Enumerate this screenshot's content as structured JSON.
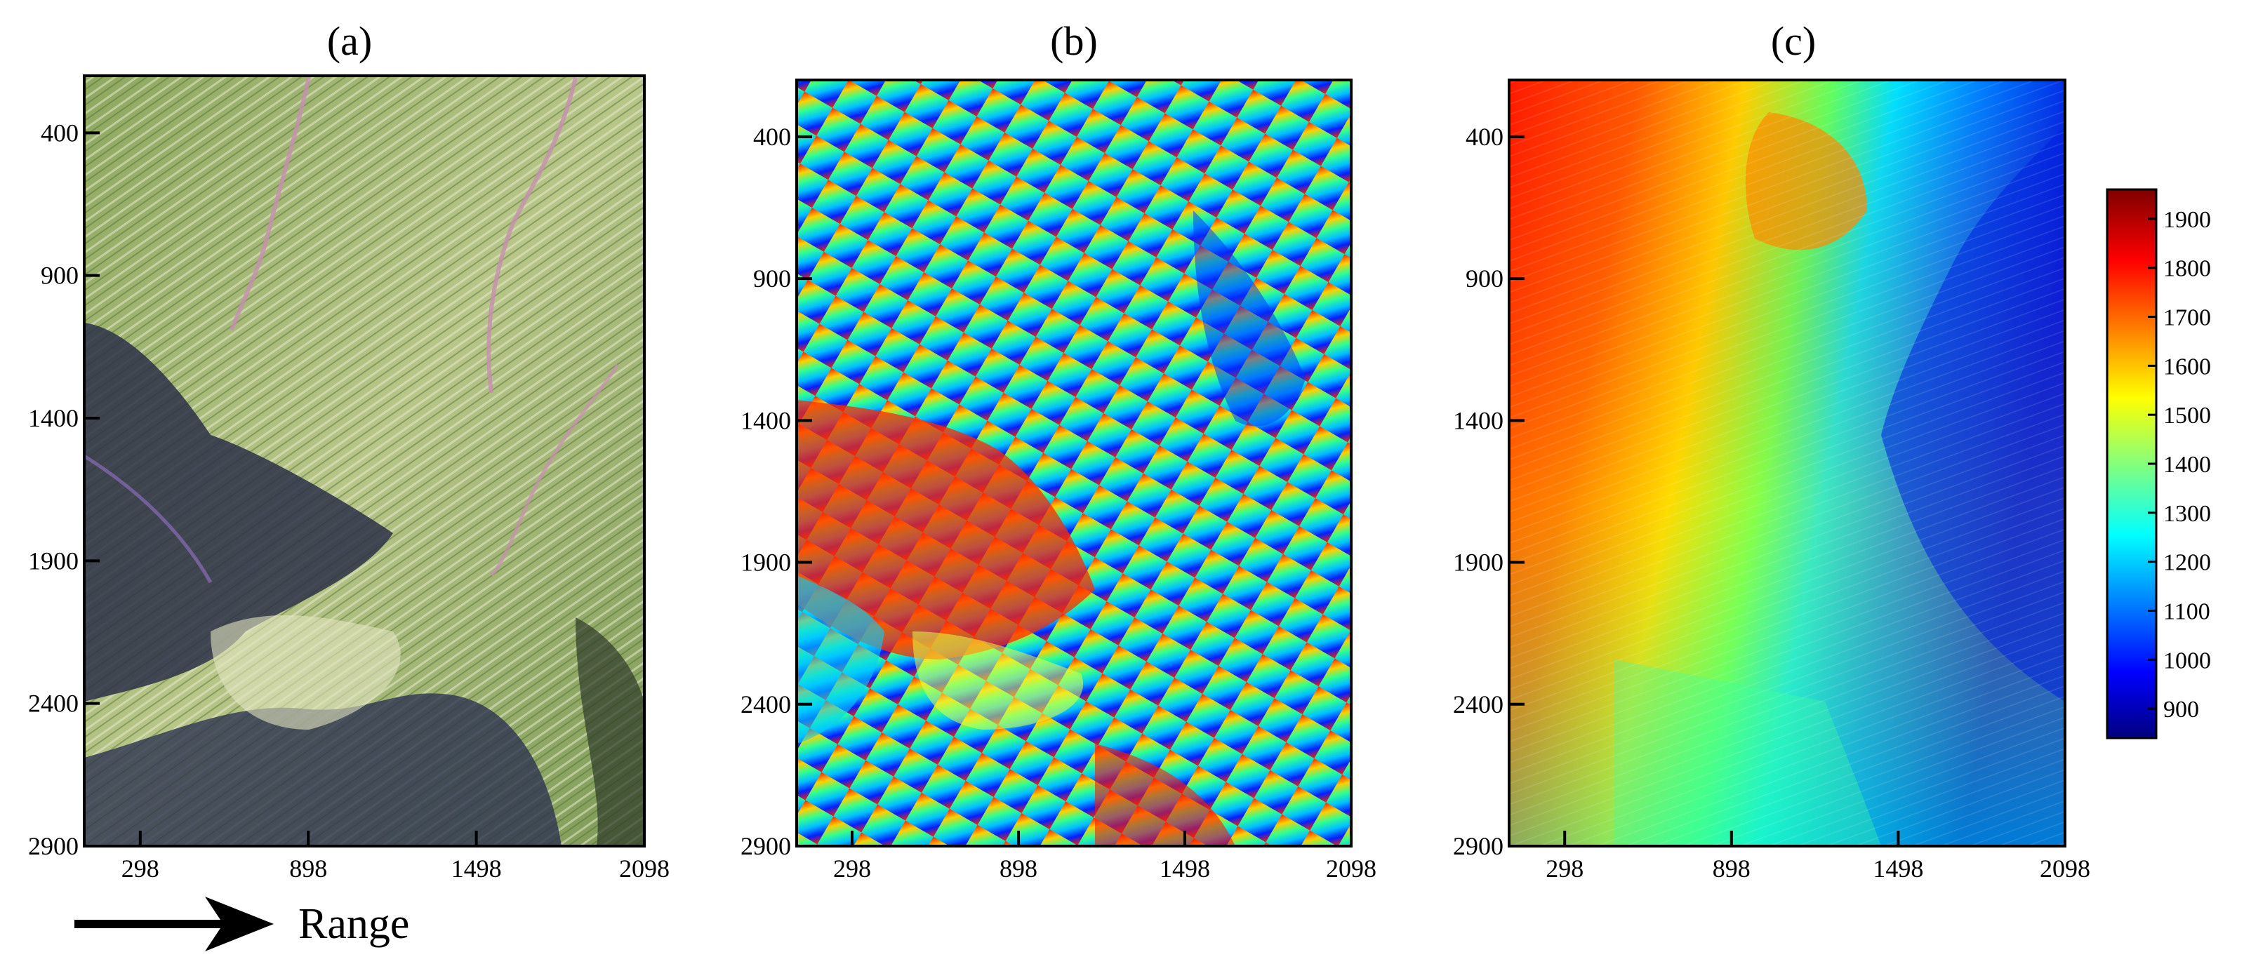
{
  "panels": [
    {
      "label": "(a)",
      "kind": "optical"
    },
    {
      "label": "(b)",
      "kind": "wrapped"
    },
    {
      "label": "(c)",
      "kind": "elevation"
    }
  ],
  "y_ticks": [
    "400",
    "900",
    "1400",
    "1900",
    "2400",
    "2900"
  ],
  "x_ticks": [
    "298",
    "898",
    "1498",
    "2098"
  ],
  "range_label": "Range",
  "colorbar": {
    "ticks": [
      "1900",
      "1800",
      "1700",
      "1600",
      "1500",
      "1400",
      "1300",
      "1200",
      "1100",
      "1000",
      "900"
    ],
    "colormap": "jet"
  },
  "colors": {
    "optical_green": "#8fae5a",
    "optical_pale": "#d8ddb0",
    "optical_dark": "#2a2a48",
    "jet_dark_blue": "#00007f",
    "jet_blue": "#0000ff",
    "jet_cyan": "#00ffff",
    "jet_yellow": "#ffff00",
    "jet_red": "#ff0000",
    "jet_dark_red": "#7f0000"
  }
}
